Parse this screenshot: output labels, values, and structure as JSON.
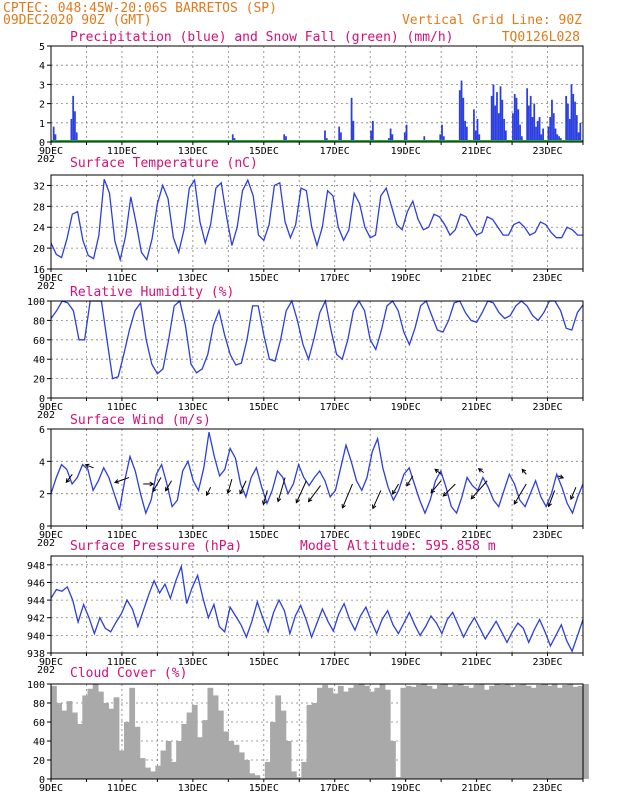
{
  "header": {
    "line1": "CPTEC:  048:45W-20:06S  BARRETOS (SP)",
    "line2": "09DEC2020 90Z (GMT)",
    "grid_note": "Vertical Grid Line: 90Z",
    "run_id": "TQ0126L028"
  },
  "x_axis_labels": [
    "9DEC",
    "11DEC",
    "13DEC",
    "15DEC",
    "17DEC",
    "19DEC",
    "21DEC",
    "23DEC"
  ],
  "x_axis_small_label": "202",
  "colors": {
    "series_blue": "#2b3fe0",
    "snow_green": "#1faa2a",
    "cloud_gray": "#a9a9a9",
    "header_orange": "#e07a1c",
    "title_magenta": "#d4107a",
    "grid": "#808080"
  },
  "chart_data": [
    {
      "type": "bar",
      "title": "Precipitation (blue) and Snow Fall (green) (mm/h)",
      "ylim": [
        0,
        5
      ],
      "yticks": [
        "0",
        "1",
        "2",
        "3",
        "4",
        "5"
      ],
      "series": [
        {
          "name": "Precipitation",
          "x": [
            0.05,
            0.1,
            0.55,
            0.6,
            0.65,
            0.7,
            3.1,
            4.2,
            5.1,
            5.15,
            6.55,
            6.6,
            7.7,
            7.75,
            8.1,
            8.15,
            8.45,
            8.5,
            9.0,
            9.05,
            9.5,
            9.55,
            9.6,
            9.95,
            10.0,
            10.5,
            10.55,
            10.95,
            11.0,
            11.05,
            11.5,
            11.55,
            11.6,
            11.65,
            11.7,
            11.9,
            11.95,
            12.0,
            12.05,
            12.4,
            12.45,
            12.5,
            12.55,
            12.6,
            12.65,
            12.7,
            12.75,
            12.8,
            13.0,
            13.05,
            13.1,
            13.15,
            13.2,
            13.25,
            13.4,
            13.45,
            13.5,
            13.55,
            13.6,
            13.65,
            13.7,
            13.75,
            13.8,
            13.85,
            14.0,
            14.05,
            14.1,
            14.15,
            14.2,
            14.25,
            14.3,
            14.35,
            14.4,
            14.5,
            14.55,
            14.6,
            14.65,
            14.7,
            14.75,
            14.8,
            14.85,
            14.9
          ],
          "values": [
            0.8,
            0.4,
            1.2,
            2.4,
            1.6,
            0.5,
            0.1,
            0.1,
            0.4,
            0.2,
            0.4,
            0.3,
            0.6,
            0.2,
            0.8,
            0.5,
            2.3,
            1.1,
            0.6,
            1.1,
            0.2,
            0.7,
            0.4,
            0.5,
            0.9,
            0.3,
            0.1,
            0.4,
            0.9,
            0.3,
            2.7,
            3.2,
            2.3,
            1.1,
            0.8,
            1.7,
            0.6,
            1.2,
            0.4,
            2.4,
            3.0,
            1.9,
            2.6,
            1.5,
            2.9,
            2.2,
            1.2,
            0.6,
            1.5,
            2.5,
            2.3,
            1.7,
            0.9,
            0.3,
            2.8,
            1.9,
            2.4,
            1.3,
            2.0,
            0.8,
            1.1,
            1.3,
            0.4,
            0.7,
            0.8,
            1.3,
            2.2,
            1.5,
            0.7,
            0.4,
            0.3,
            0.2,
            0.1,
            2.4,
            2.0,
            1.2,
            3.0,
            2.5,
            2.1,
            1.4,
            0.5,
            1.0
          ]
        },
        {
          "name": "Snow Fall",
          "x": [
            0,
            15
          ],
          "values": [
            0,
            0
          ]
        }
      ]
    },
    {
      "type": "line",
      "title": "Surface Temperature (nC)",
      "ylim": [
        16,
        34
      ],
      "yticks": [
        "16",
        "20",
        "24",
        "28",
        "32"
      ],
      "series": [
        {
          "name": "Temperature",
          "values": [
            21.0,
            18.8,
            18.2,
            21.8,
            26.5,
            27.0,
            21.5,
            18.6,
            18.0,
            22.5,
            33.2,
            30.5,
            21.4,
            17.8,
            22.2,
            29.8,
            24.8,
            19.2,
            17.8,
            21.8,
            28.5,
            32.0,
            29.5,
            22.0,
            19.2,
            23.5,
            31.5,
            33.0,
            25.0,
            21.0,
            24.5,
            31.5,
            32.5,
            26.0,
            20.5,
            24.0,
            31.0,
            33.0,
            30.0,
            22.5,
            21.5,
            24.5,
            32.0,
            32.5,
            25.0,
            22.0,
            24.5,
            31.5,
            31.0,
            24.0,
            20.5,
            24.0,
            31.0,
            30.0,
            24.0,
            21.5,
            23.5,
            30.5,
            28.5,
            24.0,
            22.0,
            22.5,
            30.0,
            31.5,
            28.0,
            24.5,
            23.5,
            27.0,
            29.0,
            25.5,
            23.5,
            24.0,
            26.5,
            26.0,
            24.5,
            22.5,
            23.5,
            26.5,
            26.0,
            24.0,
            22.5,
            23.0,
            26.0,
            25.5,
            24.0,
            22.5,
            22.5,
            24.5,
            25.0,
            24.0,
            22.5,
            23.0,
            25.0,
            24.5,
            23.0,
            22.0,
            22.0,
            24.0,
            23.5,
            22.5,
            22.5
          ]
        }
      ]
    },
    {
      "type": "line",
      "title": "Relative Humidity (%)",
      "ylim": [
        0,
        100
      ],
      "yticks": [
        "0",
        "20",
        "40",
        "60",
        "80",
        "100"
      ],
      "series": [
        {
          "name": "Relative Humidity",
          "values": [
            82,
            90,
            100,
            98,
            90,
            60,
            60,
            100,
            100,
            100,
            60,
            20,
            22,
            45,
            70,
            90,
            98,
            60,
            35,
            25,
            30,
            60,
            95,
            100,
            75,
            35,
            26,
            30,
            45,
            75,
            90,
            65,
            45,
            34,
            36,
            60,
            95,
            95,
            65,
            40,
            38,
            60,
            90,
            100,
            80,
            55,
            40,
            62,
            88,
            100,
            70,
            45,
            40,
            60,
            90,
            100,
            90,
            60,
            50,
            70,
            95,
            100,
            90,
            68,
            55,
            72,
            95,
            100,
            85,
            70,
            68,
            80,
            98,
            100,
            88,
            80,
            78,
            88,
            100,
            98,
            88,
            82,
            85,
            95,
            100,
            95,
            85,
            80,
            88,
            100,
            100,
            90,
            72,
            70,
            88,
            96
          ]
        }
      ]
    },
    {
      "type": "line",
      "title": "Surface Wind (m/s)",
      "ylim": [
        0,
        6
      ],
      "yticks": [
        "0",
        "2",
        "4",
        "6"
      ],
      "series": [
        {
          "name": "Wind speed",
          "values": [
            2.0,
            3.0,
            3.8,
            3.5,
            2.6,
            3.0,
            3.8,
            3.5,
            2.2,
            2.8,
            3.6,
            3.0,
            2.0,
            1.0,
            2.8,
            4.3,
            3.4,
            2.0,
            0.8,
            1.6,
            3.2,
            3.8,
            2.6,
            1.2,
            1.6,
            3.4,
            4.0,
            2.8,
            2.2,
            3.6,
            5.8,
            4.3,
            3.1,
            3.5,
            4.8,
            4.2,
            2.6,
            1.8,
            3.0,
            3.6,
            2.4,
            1.4,
            2.2,
            3.4,
            3.0,
            2.0,
            2.6,
            3.8,
            3.0,
            2.5,
            3.0,
            3.4,
            2.8,
            1.8,
            2.2,
            3.6,
            5.0,
            4.0,
            2.8,
            2.2,
            3.0,
            4.6,
            5.4,
            3.6,
            2.4,
            1.6,
            2.2,
            3.2,
            3.6,
            2.6,
            1.6,
            0.8,
            1.6,
            2.8,
            3.4,
            2.4,
            1.2,
            0.8,
            1.8,
            3.0,
            2.5,
            2.2,
            3.0,
            2.4,
            1.6,
            1.2,
            2.2,
            3.2,
            2.6,
            1.6,
            1.2,
            2.0,
            2.8,
            1.8,
            1.2,
            2.0,
            3.2,
            2.4,
            1.4,
            0.8,
            1.8,
            2.6
          ]
        }
      ],
      "arrows": [
        {
          "x": 0.6,
          "y": 3.2,
          "dx": -6,
          "dy": 8
        },
        {
          "x": 1.2,
          "y": 3.6,
          "dx": -8,
          "dy": -3
        },
        {
          "x": 2.2,
          "y": 3.0,
          "dx": -14,
          "dy": 5
        },
        {
          "x": 2.6,
          "y": 2.6,
          "dx": 10,
          "dy": 0
        },
        {
          "x": 3.1,
          "y": 3.0,
          "dx": -8,
          "dy": 14
        },
        {
          "x": 3.4,
          "y": 2.8,
          "dx": -6,
          "dy": 10
        },
        {
          "x": 4.5,
          "y": 2.4,
          "dx": -4,
          "dy": 8
        },
        {
          "x": 5.1,
          "y": 2.9,
          "dx": -4,
          "dy": 14
        },
        {
          "x": 5.5,
          "y": 2.8,
          "dx": -6,
          "dy": 13
        },
        {
          "x": 6.1,
          "y": 2.2,
          "dx": -4,
          "dy": 14
        },
        {
          "x": 6.6,
          "y": 3.0,
          "dx": -7,
          "dy": 24
        },
        {
          "x": 7.2,
          "y": 2.8,
          "dx": -10,
          "dy": 22
        },
        {
          "x": 7.6,
          "y": 2.5,
          "dx": -12,
          "dy": 16
        },
        {
          "x": 8.5,
          "y": 2.6,
          "dx": -10,
          "dy": 24
        },
        {
          "x": 9.3,
          "y": 2.2,
          "dx": -8,
          "dy": 18
        },
        {
          "x": 9.8,
          "y": 2.6,
          "dx": -6,
          "dy": 10
        },
        {
          "x": 10.2,
          "y": 3.1,
          "dx": -6,
          "dy": 10
        },
        {
          "x": 11.0,
          "y": 2.8,
          "dx": -10,
          "dy": 12
        },
        {
          "x": 11.4,
          "y": 2.6,
          "dx": -12,
          "dy": 12
        },
        {
          "x": 12.3,
          "y": 2.8,
          "dx": -16,
          "dy": 18
        },
        {
          "x": 13.4,
          "y": 2.6,
          "dx": -12,
          "dy": 20
        },
        {
          "x": 14.2,
          "y": 2.2,
          "dx": -6,
          "dy": 16
        },
        {
          "x": 14.8,
          "y": 2.4,
          "dx": -5,
          "dy": 12
        },
        {
          "x": 11.0,
          "y": 3.2,
          "dx": -6,
          "dy": -5
        },
        {
          "x": 12.2,
          "y": 3.3,
          "dx": -5,
          "dy": -4
        },
        {
          "x": 13.4,
          "y": 3.2,
          "dx": -4,
          "dy": -5
        },
        {
          "x": 14.3,
          "y": 3.1,
          "dx": 5,
          "dy": 2
        }
      ]
    },
    {
      "type": "line",
      "title": "Surface Pressure (hPa)",
      "annotation": "Model Altitude: 595.858  m",
      "ylim": [
        938,
        949
      ],
      "yticks": [
        "938",
        "940",
        "942",
        "944",
        "946",
        "948"
      ],
      "series": [
        {
          "name": "Pressure",
          "values": [
            944.2,
            945.2,
            945.0,
            945.5,
            944.0,
            941.5,
            943.5,
            942.0,
            940.2,
            942.0,
            940.8,
            940.4,
            941.5,
            942.5,
            944.0,
            943.0,
            941.0,
            942.8,
            944.6,
            946.2,
            944.8,
            945.8,
            944.2,
            946.2,
            947.8,
            943.6,
            945.4,
            946.8,
            944.2,
            942.0,
            943.5,
            941.0,
            940.4,
            943.2,
            942.2,
            941.2,
            939.8,
            941.6,
            943.8,
            942.0,
            940.4,
            942.6,
            944.0,
            942.8,
            940.2,
            942.2,
            943.4,
            941.8,
            939.8,
            941.4,
            943.0,
            941.6,
            940.5,
            942.4,
            943.6,
            941.8,
            940.6,
            942.2,
            943.2,
            941.6,
            940.2,
            941.8,
            942.8,
            941.2,
            940.2,
            941.4,
            942.6,
            941.2,
            940.0,
            941.0,
            942.2,
            941.4,
            940.2,
            941.8,
            942.6,
            941.2,
            939.8,
            941.0,
            942.0,
            940.8,
            939.6,
            940.6,
            941.6,
            940.4,
            939.2,
            940.4,
            941.4,
            940.8,
            939.2,
            940.6,
            941.8,
            940.4,
            938.8,
            940.0,
            941.2,
            939.4,
            938.2,
            940.0,
            941.8
          ]
        }
      ]
    },
    {
      "type": "area",
      "title": "Cloud Cover (%)",
      "ylim": [
        0,
        100
      ],
      "yticks": [
        "0",
        "20",
        "40",
        "60",
        "80",
        "100"
      ],
      "series": [
        {
          "name": "Cloud Cover",
          "values": [
            98,
            80,
            72,
            82,
            70,
            58,
            88,
            95,
            100,
            92,
            80,
            74,
            86,
            30,
            60,
            96,
            55,
            22,
            12,
            8,
            14,
            30,
            40,
            18,
            40,
            58,
            70,
            78,
            44,
            62,
            96,
            88,
            72,
            50,
            40,
            36,
            28,
            20,
            6,
            4,
            0,
            18,
            60,
            88,
            72,
            40,
            8,
            2,
            18,
            78,
            80,
            96,
            99,
            96,
            90,
            98,
            92,
            96,
            99,
            100,
            98,
            92,
            96,
            100,
            94,
            40,
            2,
            96,
            98,
            97,
            99,
            100,
            98,
            95,
            99,
            100,
            97,
            99,
            100,
            98,
            96,
            99,
            100,
            94,
            98,
            100,
            99,
            100,
            97,
            99,
            100,
            98,
            96,
            99,
            100,
            98,
            100,
            96,
            99,
            100,
            97,
            98,
            100
          ]
        }
      ]
    }
  ]
}
